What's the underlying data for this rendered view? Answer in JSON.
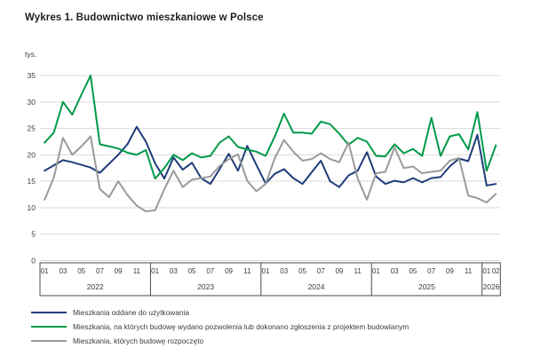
{
  "page": {
    "title": "Wykres 1. Budownictwo mieszkaniowe w Polsce"
  },
  "chart_data": {
    "type": "line",
    "title": "Wykres 1. Budownictwo mieszkaniowe w Polsce",
    "ylabel": "tys.",
    "xlabel": "",
    "ylim": [
      0,
      35
    ],
    "ytick_step": 5,
    "grid": "horizontal-only",
    "legend_position": "bottom-left",
    "years": [
      {
        "label": "2022",
        "tick_labels": [
          "01",
          "03",
          "05",
          "07",
          "09",
          "11"
        ],
        "n_months": 12
      },
      {
        "label": "2023",
        "tick_labels": [
          "01",
          "03",
          "05",
          "07",
          "09",
          "11"
        ],
        "n_months": 12
      },
      {
        "label": "2024",
        "tick_labels": [
          "01",
          "03",
          "05",
          "07",
          "09",
          "11"
        ],
        "n_months": 12
      },
      {
        "label": "2025",
        "tick_labels": [
          "01",
          "03",
          "05",
          "07",
          "09",
          "11"
        ],
        "n_months": 12
      },
      {
        "label": "2026",
        "tick_labels": [
          "01",
          "02"
        ],
        "n_months": 2
      }
    ],
    "x": [
      "2022-01",
      "2022-02",
      "2022-03",
      "2022-04",
      "2022-05",
      "2022-06",
      "2022-07",
      "2022-08",
      "2022-09",
      "2022-10",
      "2022-11",
      "2022-12",
      "2023-01",
      "2023-02",
      "2023-03",
      "2023-04",
      "2023-05",
      "2023-06",
      "2023-07",
      "2023-08",
      "2023-09",
      "2023-10",
      "2023-11",
      "2023-12",
      "2024-01",
      "2024-02",
      "2024-03",
      "2024-04",
      "2024-05",
      "2024-06",
      "2024-07",
      "2024-08",
      "2024-09",
      "2024-10",
      "2024-11",
      "2024-12",
      "2025-01",
      "2025-02",
      "2025-03",
      "2025-04",
      "2025-05",
      "2025-06",
      "2025-07",
      "2025-08",
      "2025-09",
      "2025-10",
      "2025-11",
      "2025-12",
      "2026-01",
      "2026-02"
    ],
    "series": [
      {
        "id": "completed",
        "name": "Mieszkania oddane do użytkowania",
        "color": "#1f3d7a",
        "values": [
          17.0,
          18.0,
          19.0,
          18.6,
          18.1,
          17.6,
          16.6,
          18.3,
          20.0,
          22.0,
          25.3,
          22.5,
          18.4,
          15.5,
          19.5,
          17.2,
          18.5,
          15.6,
          14.5,
          17.3,
          20.2,
          17.0,
          21.7,
          18.1,
          14.6,
          16.4,
          17.3,
          15.6,
          14.5,
          16.7,
          18.9,
          15.0,
          13.9,
          16.1,
          17.0,
          20.5,
          15.9,
          14.5,
          15.1,
          14.8,
          15.6,
          14.8,
          15.6,
          15.8,
          17.8,
          19.3,
          18.8,
          23.8,
          14.2,
          14.5
        ]
      },
      {
        "id": "permits",
        "name": "Mieszkania, na których budowę wydano pozwolenia lub dokonano zgłoszenia z projektem budowlanym",
        "color": "#009a49",
        "values": [
          22.3,
          24.2,
          30.0,
          27.6,
          31.4,
          35.0,
          22.0,
          21.6,
          21.2,
          20.4,
          20.0,
          20.9,
          15.5,
          17.5,
          20.0,
          19.0,
          20.3,
          19.5,
          19.8,
          22.3,
          23.5,
          21.5,
          21.0,
          20.6,
          19.8,
          23.5,
          27.8,
          24.2,
          24.2,
          24.0,
          26.3,
          25.8,
          24.0,
          21.9,
          23.2,
          22.5,
          19.8,
          19.7,
          22.0,
          20.3,
          21.1,
          19.8,
          27.0,
          19.8,
          23.5,
          23.9,
          21.0,
          28.1,
          17.0,
          21.8
        ]
      },
      {
        "id": "started",
        "name": "Mieszkania, których budowę rozpoczęto",
        "color": "#9a9a9a",
        "values": [
          11.5,
          15.7,
          23.2,
          20.0,
          21.6,
          23.5,
          13.5,
          12.0,
          15.0,
          12.4,
          10.4,
          9.3,
          9.5,
          13.5,
          17.0,
          13.9,
          15.3,
          15.6,
          15.9,
          17.9,
          19.2,
          20.1,
          15.1,
          13.1,
          14.5,
          19.4,
          22.8,
          20.6,
          18.9,
          19.2,
          20.3,
          19.2,
          18.6,
          22.3,
          15.5,
          11.5,
          16.5,
          16.8,
          21.4,
          17.5,
          17.8,
          16.5,
          16.8,
          17.0,
          18.9,
          19.4,
          12.3,
          11.8,
          11.0,
          12.6
        ]
      }
    ],
    "style": {
      "grid_color": "#d9d9d9",
      "axis_box_color": "#4a4a4a",
      "tick_text_color": "#3c3c3c",
      "title_color": "#1f1f1f"
    }
  }
}
